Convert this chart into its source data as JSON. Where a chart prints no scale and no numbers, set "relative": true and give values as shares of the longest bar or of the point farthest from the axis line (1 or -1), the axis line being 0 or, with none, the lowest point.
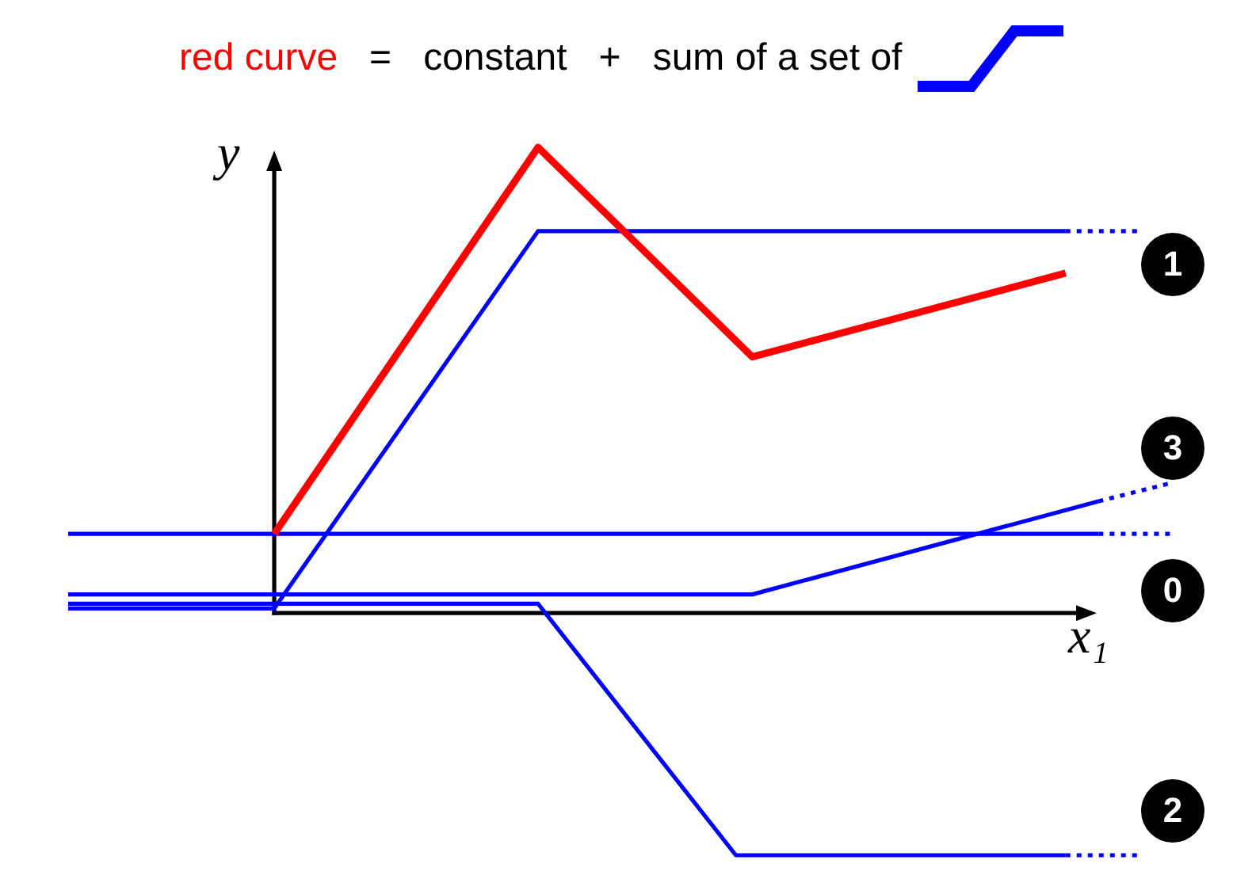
{
  "chart_data": {
    "type": "line",
    "title": "=   constant   +   sum of a set of",
    "xlabel": "x₁",
    "ylabel": "y",
    "relative": true,
    "tick_labels": false,
    "legend": "top",
    "categories": [
      null,
      null,
      null,
      null,
      null,
      null,
      null,
      null,
      null,
      null,
      null,
      null,
      null,
      null,
      null,
      null,
      null,
      null,
      null,
      null,
      null,
      null,
      null,
      null,
      null,
      null,
      null,
      null,
      null,
      null,
      null,
      null,
      null,
      null,
      null,
      null,
      null,
      null,
      null,
      null,
      null,
      null,
      null,
      null,
      null,
      null,
      null,
      null,
      null,
      null,
      null,
      null,
      null,
      null,
      null,
      null,
      null,
      null,
      null,
      null,
      null,
      null,
      null,
      null,
      null,
      null,
      null,
      null,
      null,
      null,
      null,
      null,
      null,
      null,
      null,
      null,
      null,
      null,
      null,
      null,
      null,
      null,
      null,
      null,
      null,
      null,
      null,
      null,
      null,
      null,
      null,
      null,
      null,
      null,
      null,
      null,
      null,
      null,
      null,
      null,
      null,
      null,
      null,
      null,
      null,
      null,
      null,
      null,
      null,
      null,
      null,
      null,
      null,
      null,
      null,
      null,
      null,
      null,
      null,
      null,
      null,
      null,
      null,
      null,
      null,
      null,
      null,
      null,
      null,
      null,
      null,
      null,
      null,
      null,
      null
    ],
    "series": [
      {
        "name": "red curve",
        "color": "#ff0000",
        "values": [
          null,
          null,
          null,
          null,
          null,
          null,
          null,
          null,
          null,
          null,
          null,
          null,
          null,
          null,
          null,
          null,
          null,
          null,
          null,
          null,
          null,
          null,
          null,
          null,
          null,
          0.17,
          null,
          null,
          null,
          null,
          null,
          null,
          null,
          null,
          null,
          null,
          null,
          null,
          null,
          null,
          null,
          null,
          null,
          null,
          null,
          null,
          null,
          null,
          null,
          null,
          null,
          null,
          null,
          null,
          null,
          null,
          null,
          1,
          null,
          null,
          null,
          null,
          null,
          null,
          null,
          null,
          null,
          null,
          null,
          null,
          null,
          null,
          null,
          null,
          null,
          null,
          null,
          null,
          null,
          null,
          null,
          null,
          null,
          0.55,
          null,
          null,
          null,
          null,
          null,
          null,
          null,
          null,
          null,
          null,
          null,
          null,
          null,
          null,
          null,
          null,
          null,
          null,
          null,
          null,
          null,
          null,
          null,
          null,
          null,
          null,
          null,
          null,
          null,
          null,
          null,
          null,
          null,
          null,
          null,
          null,
          null,
          0.73,
          null,
          null,
          null,
          null,
          null,
          null,
          null,
          null,
          null,
          null,
          null,
          null,
          null
        ]
      },
      {
        "name": "1",
        "color": "#0000ff",
        "values": [
          0.01,
          null,
          null,
          null,
          null,
          null,
          null,
          null,
          null,
          null,
          null,
          null,
          null,
          null,
          null,
          null,
          null,
          null,
          null,
          null,
          null,
          null,
          null,
          null,
          null,
          0.01,
          null,
          null,
          null,
          null,
          null,
          null,
          null,
          null,
          null,
          null,
          null,
          null,
          null,
          null,
          null,
          null,
          null,
          null,
          null,
          null,
          null,
          null,
          null,
          null,
          null,
          null,
          null,
          null,
          null,
          null,
          null,
          0.82,
          null,
          null,
          null,
          null,
          null,
          null,
          null,
          null,
          null,
          null,
          null,
          null,
          null,
          null,
          null,
          null,
          null,
          null,
          null,
          null,
          null,
          null,
          null,
          null,
          null,
          null,
          null,
          null,
          null,
          null,
          null,
          null,
          null,
          null,
          null,
          null,
          null,
          null,
          null,
          null,
          null,
          null,
          null,
          null,
          null,
          null,
          null,
          null,
          null,
          null,
          null,
          null,
          null,
          null,
          null,
          null,
          null,
          null,
          null,
          null,
          null,
          null,
          null,
          0.82,
          null,
          null,
          null,
          null,
          null,
          null,
          null,
          null,
          null,
          null,
          null,
          null,
          null
        ]
      },
      {
        "color": "#0000ff",
        "line_style": "dotted",
        "values": [
          null,
          null,
          null,
          null,
          null,
          null,
          null,
          null,
          null,
          null,
          null,
          null,
          null,
          null,
          null,
          null,
          null,
          null,
          null,
          null,
          null,
          null,
          null,
          null,
          null,
          null,
          null,
          null,
          null,
          null,
          null,
          null,
          null,
          null,
          null,
          null,
          null,
          null,
          null,
          null,
          null,
          null,
          null,
          null,
          null,
          null,
          null,
          null,
          null,
          null,
          null,
          null,
          null,
          null,
          null,
          null,
          null,
          null,
          null,
          null,
          null,
          null,
          null,
          null,
          null,
          null,
          null,
          null,
          null,
          null,
          null,
          null,
          null,
          null,
          null,
          null,
          null,
          null,
          null,
          null,
          null,
          null,
          null,
          null,
          null,
          null,
          null,
          null,
          null,
          null,
          null,
          null,
          null,
          null,
          null,
          null,
          null,
          null,
          null,
          null,
          null,
          null,
          null,
          null,
          null,
          null,
          null,
          null,
          null,
          null,
          null,
          null,
          null,
          null,
          null,
          null,
          null,
          null,
          null,
          null,
          null,
          0.82,
          null,
          null,
          null,
          null,
          null,
          null,
          null,
          null,
          0.82,
          null,
          null,
          null,
          null
        ]
      },
      {
        "name": "3",
        "color": "#0000ff",
        "values": [
          0.04,
          null,
          null,
          null,
          null,
          null,
          null,
          null,
          null,
          null,
          null,
          null,
          null,
          null,
          null,
          null,
          null,
          null,
          null,
          null,
          null,
          null,
          null,
          null,
          null,
          null,
          null,
          null,
          null,
          null,
          null,
          null,
          null,
          null,
          null,
          null,
          null,
          null,
          null,
          null,
          null,
          null,
          null,
          null,
          null,
          null,
          null,
          null,
          null,
          null,
          null,
          null,
          null,
          null,
          null,
          null,
          null,
          null,
          null,
          null,
          null,
          null,
          null,
          null,
          null,
          null,
          null,
          null,
          null,
          null,
          null,
          null,
          null,
          null,
          null,
          null,
          null,
          null,
          null,
          null,
          null,
          null,
          null,
          0.04,
          null,
          null,
          null,
          null,
          null,
          null,
          null,
          null,
          null,
          null,
          null,
          null,
          null,
          null,
          null,
          null,
          null,
          null,
          null,
          null,
          null,
          null,
          null,
          null,
          null,
          null,
          null,
          null,
          null,
          null,
          null,
          null,
          null,
          null,
          null,
          null,
          null,
          null,
          null,
          null,
          null,
          0.24,
          null,
          null,
          null,
          null,
          null,
          null,
          null,
          null,
          null
        ]
      },
      {
        "color": "#0000ff",
        "line_style": "dotted",
        "values": [
          null,
          null,
          null,
          null,
          null,
          null,
          null,
          null,
          null,
          null,
          null,
          null,
          null,
          null,
          null,
          null,
          null,
          null,
          null,
          null,
          null,
          null,
          null,
          null,
          null,
          null,
          null,
          null,
          null,
          null,
          null,
          null,
          null,
          null,
          null,
          null,
          null,
          null,
          null,
          null,
          null,
          null,
          null,
          null,
          null,
          null,
          null,
          null,
          null,
          null,
          null,
          null,
          null,
          null,
          null,
          null,
          null,
          null,
          null,
          null,
          null,
          null,
          null,
          null,
          null,
          null,
          null,
          null,
          null,
          null,
          null,
          null,
          null,
          null,
          null,
          null,
          null,
          null,
          null,
          null,
          null,
          null,
          null,
          null,
          null,
          null,
          null,
          null,
          null,
          null,
          null,
          null,
          null,
          null,
          null,
          null,
          null,
          null,
          null,
          null,
          null,
          null,
          null,
          null,
          null,
          null,
          null,
          null,
          null,
          null,
          null,
          null,
          null,
          null,
          null,
          null,
          null,
          null,
          null,
          null,
          null,
          null,
          null,
          null,
          null,
          0.24,
          null,
          null,
          null,
          null,
          null,
          null,
          null,
          null,
          0.28
        ]
      },
      {
        "name": "0",
        "color": "#0000ff",
        "values": [
          0.17,
          null,
          null,
          null,
          null,
          null,
          null,
          null,
          null,
          null,
          null,
          null,
          null,
          null,
          null,
          null,
          null,
          null,
          null,
          null,
          null,
          null,
          null,
          null,
          null,
          null,
          null,
          null,
          null,
          null,
          null,
          null,
          null,
          null,
          null,
          null,
          null,
          null,
          null,
          null,
          null,
          null,
          null,
          null,
          null,
          null,
          null,
          null,
          null,
          null,
          null,
          null,
          null,
          null,
          null,
          null,
          null,
          null,
          null,
          null,
          null,
          null,
          null,
          null,
          null,
          null,
          null,
          null,
          null,
          null,
          null,
          null,
          null,
          null,
          null,
          null,
          null,
          null,
          null,
          null,
          null,
          null,
          null,
          null,
          null,
          null,
          null,
          null,
          null,
          null,
          null,
          null,
          null,
          null,
          null,
          null,
          null,
          null,
          null,
          null,
          null,
          null,
          null,
          null,
          null,
          null,
          null,
          null,
          null,
          null,
          null,
          null,
          null,
          null,
          null,
          null,
          null,
          null,
          null,
          null,
          null,
          null,
          null,
          null,
          null,
          0.17,
          null,
          null,
          null,
          null,
          null,
          null,
          null,
          null,
          null
        ]
      },
      {
        "color": "#0000ff",
        "line_style": "dotted",
        "values": [
          null,
          null,
          null,
          null,
          null,
          null,
          null,
          null,
          null,
          null,
          null,
          null,
          null,
          null,
          null,
          null,
          null,
          null,
          null,
          null,
          null,
          null,
          null,
          null,
          null,
          null,
          null,
          null,
          null,
          null,
          null,
          null,
          null,
          null,
          null,
          null,
          null,
          null,
          null,
          null,
          null,
          null,
          null,
          null,
          null,
          null,
          null,
          null,
          null,
          null,
          null,
          null,
          null,
          null,
          null,
          null,
          null,
          null,
          null,
          null,
          null,
          null,
          null,
          null,
          null,
          null,
          null,
          null,
          null,
          null,
          null,
          null,
          null,
          null,
          null,
          null,
          null,
          null,
          null,
          null,
          null,
          null,
          null,
          null,
          null,
          null,
          null,
          null,
          null,
          null,
          null,
          null,
          null,
          null,
          null,
          null,
          null,
          null,
          null,
          null,
          null,
          null,
          null,
          null,
          null,
          null,
          null,
          null,
          null,
          null,
          null,
          null,
          null,
          null,
          null,
          null,
          null,
          null,
          null,
          null,
          null,
          null,
          null,
          null,
          null,
          0.17,
          null,
          null,
          null,
          null,
          null,
          null,
          null,
          null,
          0.17
        ]
      },
      {
        "name": "2",
        "color": "#0000ff",
        "values": [
          0.02,
          null,
          null,
          null,
          null,
          null,
          null,
          null,
          null,
          null,
          null,
          null,
          null,
          null,
          null,
          null,
          null,
          null,
          null,
          null,
          null,
          null,
          null,
          null,
          null,
          null,
          null,
          null,
          null,
          null,
          null,
          null,
          null,
          null,
          null,
          null,
          null,
          null,
          null,
          null,
          null,
          null,
          null,
          null,
          null,
          null,
          null,
          null,
          null,
          null,
          null,
          null,
          null,
          null,
          null,
          null,
          null,
          0.02,
          null,
          null,
          null,
          null,
          null,
          null,
          null,
          null,
          null,
          null,
          null,
          null,
          null,
          null,
          null,
          null,
          null,
          null,
          null,
          null,
          null,
          null,
          null,
          -0.52,
          null,
          null,
          null,
          null,
          null,
          null,
          null,
          null,
          null,
          null,
          null,
          null,
          null,
          null,
          null,
          null,
          null,
          null,
          null,
          null,
          null,
          null,
          null,
          null,
          null,
          null,
          null,
          null,
          null,
          null,
          null,
          null,
          null,
          null,
          null,
          null,
          null,
          null,
          null,
          -0.52,
          null,
          null,
          null,
          null,
          null,
          null,
          null,
          null,
          null,
          null,
          null,
          null,
          null
        ]
      },
      {
        "color": "#0000ff",
        "line_style": "dotted",
        "values": [
          null,
          null,
          null,
          null,
          null,
          null,
          null,
          null,
          null,
          null,
          null,
          null,
          null,
          null,
          null,
          null,
          null,
          null,
          null,
          null,
          null,
          null,
          null,
          null,
          null,
          null,
          null,
          null,
          null,
          null,
          null,
          null,
          null,
          null,
          null,
          null,
          null,
          null,
          null,
          null,
          null,
          null,
          null,
          null,
          null,
          null,
          null,
          null,
          null,
          null,
          null,
          null,
          null,
          null,
          null,
          null,
          null,
          null,
          null,
          null,
          null,
          null,
          null,
          null,
          null,
          null,
          null,
          null,
          null,
          null,
          null,
          null,
          null,
          null,
          null,
          null,
          null,
          null,
          null,
          null,
          null,
          null,
          null,
          null,
          null,
          null,
          null,
          null,
          null,
          null,
          null,
          null,
          null,
          null,
          null,
          null,
          null,
          null,
          null,
          null,
          null,
          null,
          null,
          null,
          null,
          null,
          null,
          null,
          null,
          null,
          null,
          null,
          null,
          null,
          null,
          null,
          null,
          null,
          null,
          null,
          null,
          -0.52,
          null,
          null,
          null,
          null,
          null,
          null,
          null,
          null,
          -0.52,
          null,
          null,
          null,
          null
        ]
      }
    ]
  }
}
